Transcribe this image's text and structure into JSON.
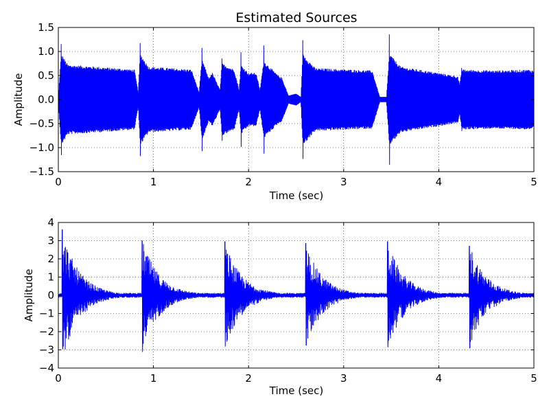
{
  "chart_data": [
    {
      "type": "line",
      "title": "Estimated Sources",
      "xlabel": "Time (sec)",
      "ylabel": "Amplitude",
      "xlim": [
        0,
        5
      ],
      "ylim": [
        -1.5,
        1.5
      ],
      "xticks": [
        "0",
        "1",
        "2",
        "3",
        "4",
        "5"
      ],
      "yticks": [
        "1.5",
        "1.0",
        "0.5",
        "0.0",
        "−0.5",
        "−1.0",
        "−1.5"
      ],
      "grid": true,
      "series_color": "#0000ff",
      "waveform": {
        "kind": "sustained-notes",
        "x_step": 0.0025,
        "onsets": [
          0.03,
          0.86,
          1.51,
          1.72,
          1.92,
          2.16,
          2.57,
          3.48,
          4.24
        ],
        "peaks": [
          1.15,
          1.17,
          1.07,
          0.85,
          0.98,
          1.12,
          1.23,
          1.35,
          0.65
        ],
        "envelope": [
          [
            0.0,
            0.05
          ],
          [
            0.03,
            0.95
          ],
          [
            0.1,
            0.72
          ],
          [
            0.4,
            0.68
          ],
          [
            0.8,
            0.62
          ],
          [
            0.84,
            0.15
          ],
          [
            0.86,
            0.95
          ],
          [
            0.95,
            0.68
          ],
          [
            1.4,
            0.62
          ],
          [
            1.48,
            0.15
          ],
          [
            1.51,
            0.85
          ],
          [
            1.58,
            0.45
          ],
          [
            1.62,
            0.55
          ],
          [
            1.7,
            0.2
          ],
          [
            1.72,
            0.75
          ],
          [
            1.85,
            0.62
          ],
          [
            1.9,
            0.2
          ],
          [
            1.92,
            0.72
          ],
          [
            2.0,
            0.55
          ],
          [
            2.08,
            0.55
          ],
          [
            2.12,
            0.2
          ],
          [
            2.16,
            0.8
          ],
          [
            2.3,
            0.52
          ],
          [
            2.35,
            0.45
          ],
          [
            2.42,
            0.08
          ],
          [
            2.5,
            0.12
          ],
          [
            2.55,
            0.05
          ],
          [
            2.57,
            0.95
          ],
          [
            2.7,
            0.65
          ],
          [
            3.3,
            0.6
          ],
          [
            3.38,
            0.05
          ],
          [
            3.45,
            0.05
          ],
          [
            3.48,
            0.95
          ],
          [
            3.6,
            0.68
          ],
          [
            4.0,
            0.55
          ],
          [
            4.2,
            0.48
          ],
          [
            4.22,
            0.3
          ],
          [
            4.24,
            0.62
          ],
          [
            4.6,
            0.6
          ],
          [
            4.95,
            0.62
          ],
          [
            5.0,
            0.6
          ]
        ]
      }
    },
    {
      "type": "line",
      "title": "",
      "xlabel": "Time (sec)",
      "ylabel": "Amplitude",
      "xlim": [
        0,
        5
      ],
      "ylim": [
        -4,
        4
      ],
      "xticks": [
        "0",
        "1",
        "2",
        "3",
        "4",
        "5"
      ],
      "yticks": [
        "4",
        "3",
        "2",
        "1",
        "0",
        "−1",
        "−2",
        "−3",
        "−4"
      ],
      "grid": true,
      "series_color": "#0000ff",
      "waveform": {
        "kind": "percussive-hits",
        "x_step": 0.0025,
        "onsets": [
          0.04,
          0.88,
          1.75,
          2.6,
          3.46,
          4.32
        ],
        "peaks": [
          3.6,
          3.0,
          2.95,
          2.85,
          2.95,
          2.7
        ],
        "troughs": [
          -2.8,
          -3.1,
          -2.8,
          -2.75,
          -2.85,
          -2.9
        ],
        "decay_sec": 0.18,
        "floor": 0.12
      }
    }
  ]
}
